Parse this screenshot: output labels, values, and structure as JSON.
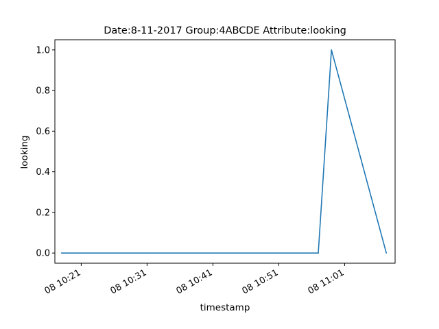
{
  "chart_data": {
    "type": "line",
    "title": "Date:8-11-2017  Group:4ABCDE Attribute:looking",
    "xlabel": "timestamp",
    "ylabel": "looking",
    "x_tick_labels": [
      "08 10:21",
      "08 10:31",
      "08 10:41",
      "08 10:51",
      "08 11:01"
    ],
    "y_tick_labels": [
      "0.0",
      "0.2",
      "0.4",
      "0.6",
      "0.8",
      "1.0"
    ],
    "series": [
      {
        "color": "#1f77b4",
        "points": [
          {
            "x": "10:18:00",
            "y": 0.0
          },
          {
            "x": "10:57:00",
            "y": 0.0
          },
          {
            "x": "10:59:00",
            "y": 1.0
          },
          {
            "x": "11:07:20",
            "y": 0.0
          }
        ]
      }
    ],
    "xlim": [
      "10:17:00",
      "11:08:40"
    ],
    "ylim": [
      -0.05,
      1.05
    ],
    "grid": false,
    "legend": "none"
  }
}
